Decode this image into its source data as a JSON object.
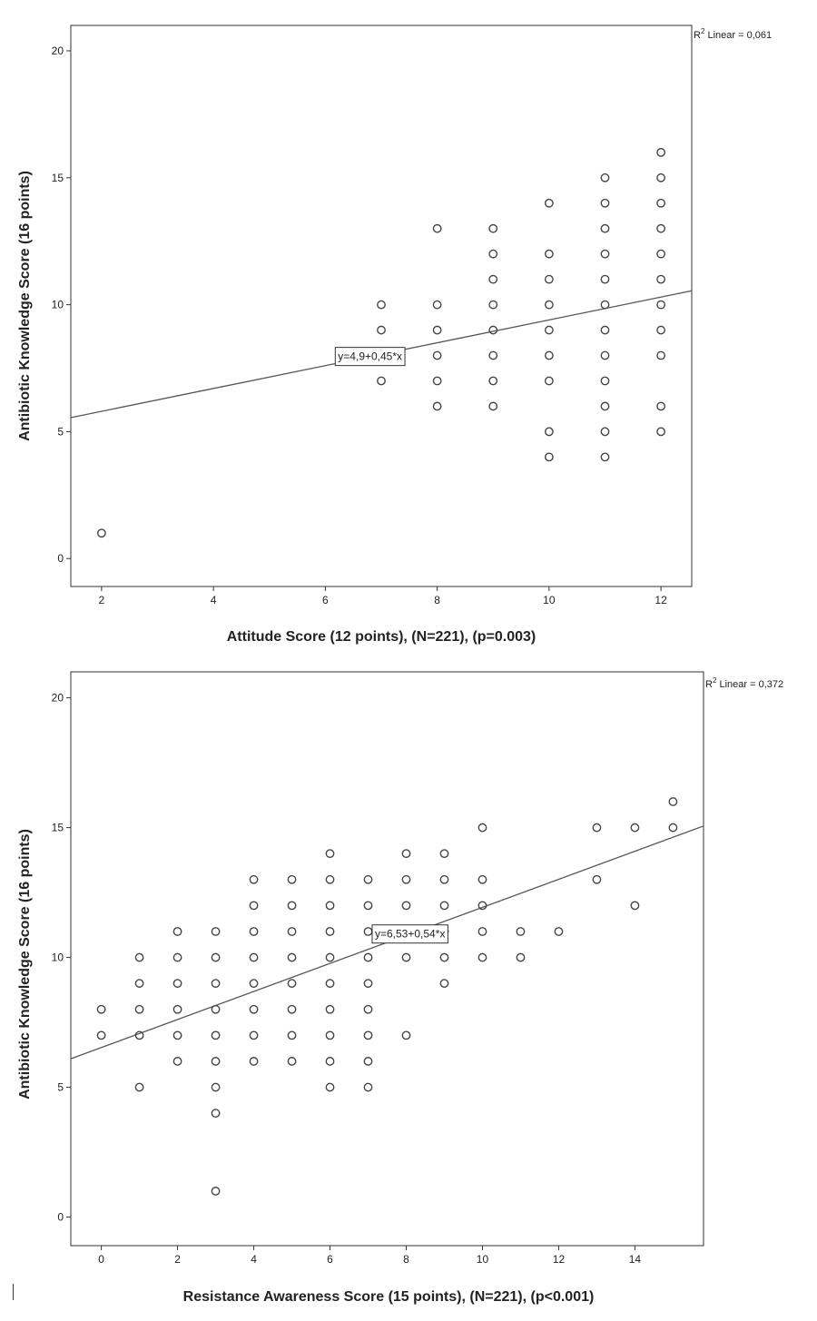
{
  "chart_data": [
    {
      "type": "scatter",
      "xlabel": "Attitude Score (12 points), (N=221), (p=0.003)",
      "ylabel": "Antibiotic Knowledge Score (16 points)",
      "xlim": [
        1.45,
        12.55
      ],
      "ylim": [
        -1.1,
        21
      ],
      "xticks": [
        2,
        4,
        6,
        8,
        10,
        12
      ],
      "yticks": [
        0,
        5,
        10,
        15,
        20
      ],
      "fit": {
        "label": "y=4,9+0,45*x",
        "intercept": 4.9,
        "slope": 0.45,
        "label_at": 6.8
      },
      "r2_label": "Linear = 0,061",
      "points": [
        [
          2,
          1
        ],
        [
          7,
          7
        ],
        [
          7,
          9
        ],
        [
          7,
          10
        ],
        [
          8,
          6
        ],
        [
          8,
          7
        ],
        [
          8,
          8
        ],
        [
          8,
          9
        ],
        [
          8,
          10
        ],
        [
          8,
          13
        ],
        [
          9,
          6
        ],
        [
          9,
          7
        ],
        [
          9,
          8
        ],
        [
          9,
          9
        ],
        [
          9,
          10
        ],
        [
          9,
          11
        ],
        [
          9,
          12
        ],
        [
          9,
          13
        ],
        [
          10,
          4
        ],
        [
          10,
          5
        ],
        [
          10,
          7
        ],
        [
          10,
          8
        ],
        [
          10,
          9
        ],
        [
          10,
          10
        ],
        [
          10,
          11
        ],
        [
          10,
          12
        ],
        [
          10,
          14
        ],
        [
          11,
          4
        ],
        [
          11,
          5
        ],
        [
          11,
          6
        ],
        [
          11,
          7
        ],
        [
          11,
          8
        ],
        [
          11,
          9
        ],
        [
          11,
          10
        ],
        [
          11,
          11
        ],
        [
          11,
          12
        ],
        [
          11,
          13
        ],
        [
          11,
          14
        ],
        [
          11,
          15
        ],
        [
          12,
          5
        ],
        [
          12,
          6
        ],
        [
          12,
          8
        ],
        [
          12,
          9
        ],
        [
          12,
          10
        ],
        [
          12,
          11
        ],
        [
          12,
          12
        ],
        [
          12,
          13
        ],
        [
          12,
          14
        ],
        [
          12,
          15
        ],
        [
          12,
          16
        ]
      ],
      "grid": false,
      "legend": "none"
    },
    {
      "type": "scatter",
      "xlabel": "Resistance Awareness Score (15 points), (N=221), (p<0.001)",
      "ylabel": "Antibiotic Knowledge Score (16 points)",
      "xlim": [
        -0.8,
        15.8
      ],
      "ylim": [
        -1.1,
        21
      ],
      "xticks": [
        0,
        2,
        4,
        6,
        8,
        10,
        12,
        14
      ],
      "yticks": [
        0,
        5,
        10,
        15,
        20
      ],
      "fit": {
        "label": "y=6,53+0,54*x",
        "intercept": 6.53,
        "slope": 0.54,
        "label_at": 8.1
      },
      "r2_label": "Linear = 0,372",
      "points": [
        [
          0,
          7
        ],
        [
          0,
          8
        ],
        [
          1,
          5
        ],
        [
          1,
          7
        ],
        [
          1,
          8
        ],
        [
          1,
          9
        ],
        [
          1,
          10
        ],
        [
          2,
          6
        ],
        [
          2,
          7
        ],
        [
          2,
          8
        ],
        [
          2,
          9
        ],
        [
          2,
          10
        ],
        [
          2,
          11
        ],
        [
          3,
          1
        ],
        [
          3,
          4
        ],
        [
          3,
          5
        ],
        [
          3,
          6
        ],
        [
          3,
          7
        ],
        [
          3,
          8
        ],
        [
          3,
          9
        ],
        [
          3,
          10
        ],
        [
          3,
          11
        ],
        [
          4,
          6
        ],
        [
          4,
          7
        ],
        [
          4,
          8
        ],
        [
          4,
          9
        ],
        [
          4,
          10
        ],
        [
          4,
          11
        ],
        [
          4,
          12
        ],
        [
          4,
          13
        ],
        [
          5,
          6
        ],
        [
          5,
          7
        ],
        [
          5,
          8
        ],
        [
          5,
          9
        ],
        [
          5,
          10
        ],
        [
          5,
          11
        ],
        [
          5,
          12
        ],
        [
          5,
          13
        ],
        [
          6,
          5
        ],
        [
          6,
          6
        ],
        [
          6,
          7
        ],
        [
          6,
          8
        ],
        [
          6,
          9
        ],
        [
          6,
          10
        ],
        [
          6,
          11
        ],
        [
          6,
          12
        ],
        [
          6,
          13
        ],
        [
          6,
          14
        ],
        [
          7,
          5
        ],
        [
          7,
          6
        ],
        [
          7,
          7
        ],
        [
          7,
          8
        ],
        [
          7,
          9
        ],
        [
          7,
          10
        ],
        [
          7,
          11
        ],
        [
          7,
          12
        ],
        [
          7,
          13
        ],
        [
          8,
          7
        ],
        [
          8,
          10
        ],
        [
          8,
          11
        ],
        [
          8,
          12
        ],
        [
          8,
          13
        ],
        [
          8,
          14
        ],
        [
          9,
          9
        ],
        [
          9,
          10
        ],
        [
          9,
          11
        ],
        [
          9,
          12
        ],
        [
          9,
          13
        ],
        [
          9,
          14
        ],
        [
          10,
          10
        ],
        [
          10,
          11
        ],
        [
          10,
          12
        ],
        [
          10,
          13
        ],
        [
          10,
          15
        ],
        [
          11,
          10
        ],
        [
          11,
          11
        ],
        [
          12,
          11
        ],
        [
          13,
          13
        ],
        [
          13,
          15
        ],
        [
          14,
          12
        ],
        [
          14,
          15
        ],
        [
          15,
          15
        ],
        [
          15,
          16
        ]
      ],
      "grid": false,
      "legend": "none"
    }
  ]
}
